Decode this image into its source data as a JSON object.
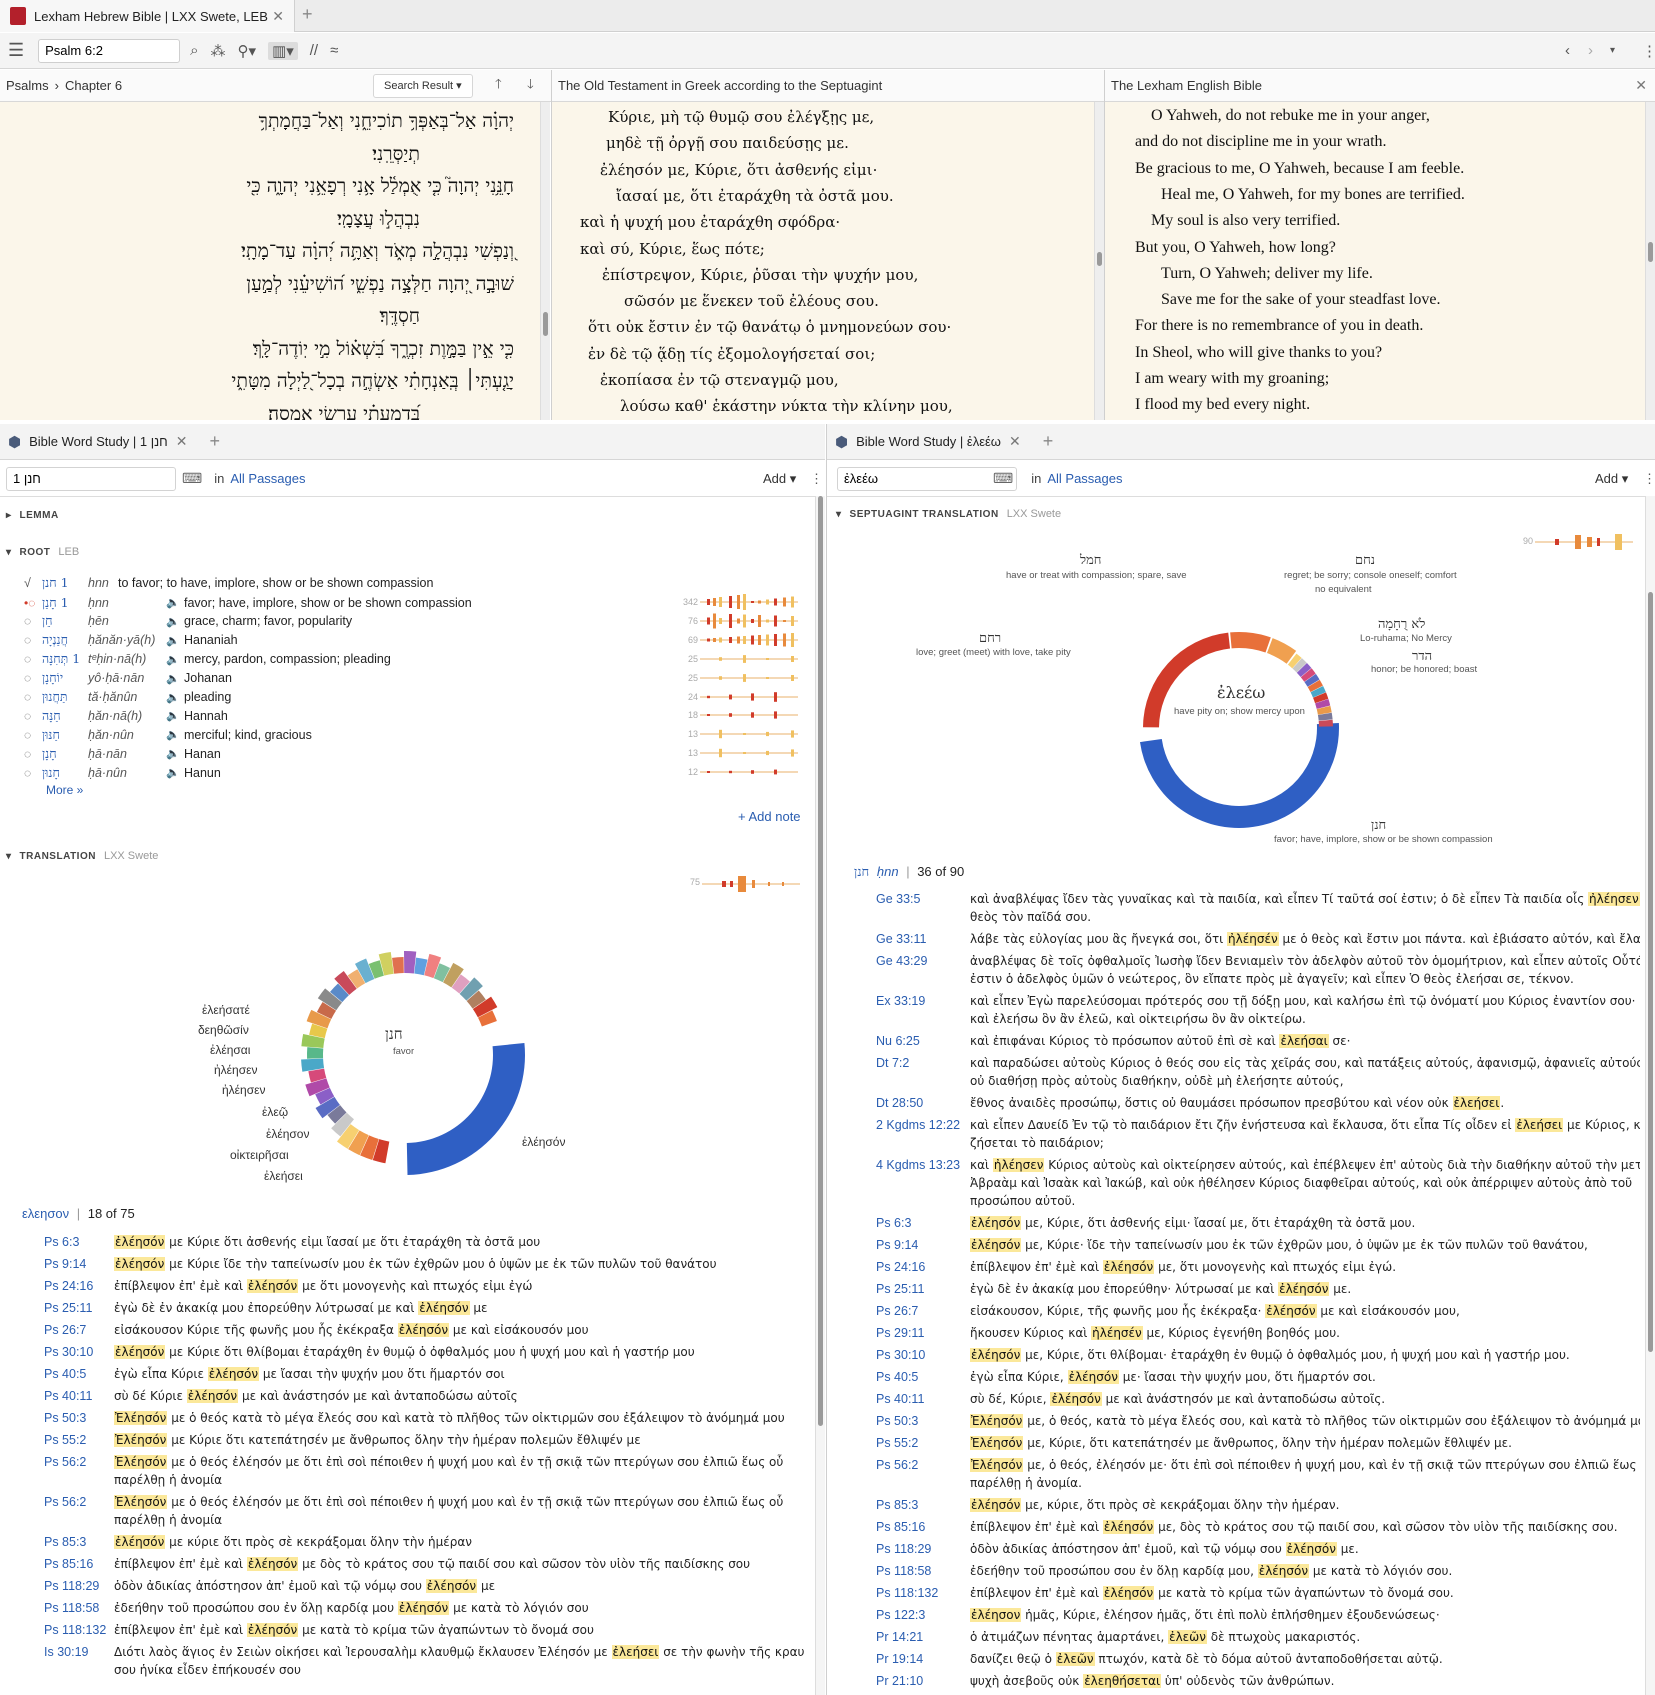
{
  "window": {
    "tab_title": "Lexham Hebrew Bible | LXX Swete, LEB"
  },
  "toolbar": {
    "reference": "Psalm 6:2"
  },
  "pane1": {
    "crumb_book": "Psalms",
    "crumb_chapter": "Chapter 6",
    "search_result": "Search Result",
    "lines": [
      "יְהוָ֗ה אַל־בְּאַפְּךָ֥ תוֹכִיחֵ֑נִי וְאַל־בַּחֲמָתְךָ֥",
      "תְיַסְּרֵֽנִי׃",
      "חָנֵּ֥נִי יְהוָה֮ כִּ֤י אֻמְלַ֫ל אָ֥נִי רְפָאֵ֥נִי יְהוָ֑ה כִּ֖י",
      "נִבְהֲל֣וּ עֲצָמָֽי׃",
      "וְ֭נַפְשִׁי נִבְהֲלָ֣ה מְאֹ֑ד וְאַתָּ֥ה יְ֝הוָ֗ה עַד־מָתָֽי׃",
      "שׁוּבָ֣ה יְ֭הוָה חַלְּצָ֣ה נַפְשִׁ֑י ה֝וֹשִׁיעֵ֗נִי לְמַ֣עַן",
      "חַסְדֶּֽךָ׃",
      "כִּ֤י אֵ֣ין בַּמָּ֣וֶת זִכְרֶ֑ךָ בִּ֝שְׁא֗וֹל מִ֣י יֽוֹדֶה־לָּֽךְ׃",
      "יָגַ֤עְתִּי׀ בְּֽאַנְחָתִ֗י אַשְׂחֶ֣ה בְכָל־לַ֭יְלָה מִטָּתִ֑י",
      "בְּ֝דִמְעָתִ֗י עַרְשִׂ֥י אַמְסֶֽה׃"
    ]
  },
  "pane2": {
    "title": "The Old Testament in Greek according to the Septuagint",
    "lines": [
      "Κύριε, μὴ τῷ θυμῷ σου ἐλέγξῃς με,",
      "μηδὲ τῇ ὀργῇ σου παιδεύσῃς με.",
      "ἐλέησόν με, Κύριε, ὅτι ἀσθενής εἰμι·",
      "ἴασαί με, ὅτι ἐταράχθη τὰ ὀστᾶ μου.",
      "καὶ ἡ ψυχή μου ἐταράχθη σφόδρα·",
      "καὶ σύ, Κύριε, ἕως πότε;",
      "ἐπίστρεψον, Κύριε, ῥῦσαι τὴν ψυχήν μου,",
      "σῶσόν με ἕνεκεν τοῦ ἐλέους σου.",
      "ὅτι οὐκ ἔστιν ἐν τῷ θανάτῳ ὁ μνημονεύων σου·",
      "ἐν δὲ τῷ ᾅδῃ τίς ἐξομολογήσεταί σοι;",
      "ἐκοπίασα ἐν τῷ στεναγμῷ μου,",
      "λούσω καθ' ἑκάστην νύκτα τὴν κλίνην μου,"
    ]
  },
  "pane3": {
    "title": "The Lexham English Bible",
    "lines": [
      "O Yahweh, do not rebuke me in your anger,",
      "and do not discipline me in your wrath.",
      "Be gracious to me, O Yahweh, because I am feeble.",
      "Heal me, O Yahweh, for my bones are terrified.",
      "My soul is also very terrified.",
      "But you, O Yahweh, how long?",
      "Turn, O Yahweh; deliver my life.",
      "Save me for the sake of your steadfast love.",
      "For there is no remembrance of you in death.",
      "In Sheol, who will give thanks to you?",
      "I am weary with my groaning;",
      "I flood my bed every night."
    ]
  },
  "ws1": {
    "tab": "Bible Word Study | 1 חנן",
    "query": "1 חנן",
    "in_label": "in",
    "scope": "All Passages",
    "add": "Add",
    "lemma_head": "LEMMA",
    "root_head": "ROOT",
    "root_sub": "LEB",
    "root_main": {
      "heb": "1 חנן",
      "tr": "hnn",
      "gloss": "to favor; to have, implore, show or be shown compassion"
    },
    "root_rows": [
      {
        "heb": "1 חָנַן",
        "tr": "ḥnn",
        "gloss": "favor; have, implore, show or be shown compassion",
        "count": "342"
      },
      {
        "heb": "חֵן",
        "tr": "ḥēn",
        "gloss": "grace, charm; favor, popularity",
        "count": "76"
      },
      {
        "heb": "חֲנַנְיָה",
        "tr": "ḥănăn·yā(h)",
        "gloss": "Hananiah",
        "count": "69"
      },
      {
        "heb": "1 תְּחִנָּה",
        "tr": "tᵉḥin·nā(h)",
        "gloss": "mercy, pardon, compassion; pleading",
        "count": "25"
      },
      {
        "heb": "יוֹחָנָן",
        "tr": "yô·ḥā·nān",
        "gloss": "Johanan",
        "count": "25"
      },
      {
        "heb": "תַּחֲנוּן",
        "tr": "tă·ḥănûn",
        "gloss": "pleading",
        "count": "24"
      },
      {
        "heb": "חַנָּה",
        "tr": "ḥăn·nā(h)",
        "gloss": "Hannah",
        "count": "18"
      },
      {
        "heb": "חַנּוּן",
        "tr": "ḥăn·nûn",
        "gloss": "merciful; kind, gracious",
        "count": "13"
      },
      {
        "heb": "חָנָן",
        "tr": "ḥā·nān",
        "gloss": "Hanan",
        "count": "13"
      },
      {
        "heb": "חָנוּן",
        "tr": "ḥā·nûn",
        "gloss": "Hanun",
        "count": "12"
      }
    ],
    "more": "More »",
    "add_note": "+ Add note",
    "trans_head": "TRANSLATION",
    "trans_sub": "LXX Swete",
    "trans_count": "75",
    "donut_center": "חנן",
    "donut_center_sub": "favor",
    "donut_labels": [
      "ἐλεήσατέ",
      "δεηθῶσίν",
      "ἐλέησαι",
      "ἠλέησεν",
      "ἠλέησεν",
      "ἐλεῷ",
      "ἐλέησον",
      "οἰκτειρῆσαι",
      "ἐλεήσει",
      "ἐλέησόν"
    ],
    "filter_word": "ελεησον",
    "filter_count": "18 of 75",
    "verses": [
      {
        "ref": "Ps 6:3",
        "pre": "",
        "hl": "ἐλέησόν",
        "post": " με Κύριε ὅτι ἀσθενής εἰμι ἴασαί με ὅτι ἐταράχθη τὰ ὀστᾶ μου"
      },
      {
        "ref": "Ps 9:14",
        "pre": "",
        "hl": "ἐλέησόν",
        "post": " με Κύριε ἴδε τὴν ταπείνωσίν μου ἐκ τῶν ἐχθρῶν μου ὁ ὑψῶν με ἐκ τῶν πυλῶν τοῦ θανάτου"
      },
      {
        "ref": "Ps 24:16",
        "pre": "ἐπίβλεψον ἐπ' ἐμὲ καὶ ",
        "hl": "ἐλέησόν",
        "post": " με ὅτι μονογενὴς καὶ πτωχός εἰμι ἐγώ"
      },
      {
        "ref": "Ps 25:11",
        "pre": "ἐγὼ δὲ ἐν ἀκακίᾳ μου ἐπορεύθην λύτρωσαί με καὶ ",
        "hl": "ἐλέησόν",
        "post": " με"
      },
      {
        "ref": "Ps 26:7",
        "pre": "εἰσάκουσον Κύριε τῆς φωνῆς μου ἧς ἐκέκραξα ",
        "hl": "ἐλέησόν",
        "post": " με καὶ εἰσάκουσόν μου"
      },
      {
        "ref": "Ps 30:10",
        "pre": "",
        "hl": "ἐλέησόν",
        "post": " με Κύριε ὅτι θλίβομαι ἐταράχθη ἐν θυμῷ ὁ ὀφθαλμός μου ἡ ψυχή μου καὶ ἡ γαστήρ μου"
      },
      {
        "ref": "Ps 40:5",
        "pre": "ἐγὼ εἶπα Κύριε ",
        "hl": "ἐλέησόν",
        "post": " με ἴασαι τὴν ψυχήν μου ὅτι ἥμαρτόν σοι"
      },
      {
        "ref": "Ps 40:11",
        "pre": "σὺ δέ Κύριε ",
        "hl": "ἐλέησόν",
        "post": " με καὶ ἀνάστησόν με καὶ ἀνταποδώσω αὐτοῖς"
      },
      {
        "ref": "Ps 50:3",
        "pre": "",
        "hl": "Ἐλέησόν",
        "post": " με ὁ θεός κατὰ τὸ μέγα ἔλεός σου καὶ κατὰ τὸ πλῆθος τῶν οἰκτιρμῶν σου ἐξάλειψον τὸ ἀνόμημά μου"
      },
      {
        "ref": "Ps 55:2",
        "pre": "",
        "hl": "Ἐλέησόν",
        "post": " με Κύριε ὅτι κατεπάτησέν με ἄνθρωπος ὅλην τὴν ἡμέραν πολεμῶν ἔθλιψέν με"
      },
      {
        "ref": "Ps 56:2",
        "pre": "",
        "hl": "Ἐλέησόν",
        "post": " με ὁ θεός ἐλέησόν με ὅτι ἐπὶ σοὶ πέποιθεν ἡ ψυχή μου καὶ ἐν τῇ σκιᾷ τῶν πτερύγων σου ἐλπιῶ ἕως οὗ",
        "line2": "παρέλθῃ ἡ ἀνομία"
      },
      {
        "ref": "Ps 56:2",
        "pre": "",
        "hl": "Ἐλέησόν",
        "post": " με ὁ θεός ἐλέησόν με ὅτι ἐπὶ σοὶ πέποιθεν ἡ ψυχή μου καὶ ἐν τῇ σκιᾷ τῶν πτερύγων σου ἐλπιῶ ἕως οὗ",
        "line2": "παρέλθῃ ἡ ἀνομία"
      },
      {
        "ref": "Ps 85:3",
        "pre": "",
        "hl": "ἐλέησόν",
        "post": " με κύριε ὅτι πρὸς σὲ κεκράξομαι ὅλην τὴν ἡμέραν"
      },
      {
        "ref": "Ps 85:16",
        "pre": "ἐπίβλεψον ἐπ' ἐμὲ καὶ ",
        "hl": "ἐλέησόν",
        "post": " με δὸς τὸ κράτος σου τῷ παιδί σου καὶ σῶσον τὸν υἱὸν τῆς παιδίσκης σου"
      },
      {
        "ref": "Ps 118:29",
        "pre": "ὁδὸν ἀδικίας ἀπόστησον ἀπ' ἐμοῦ καὶ τῷ νόμῳ σου ",
        "hl": "ἐλέησόν",
        "post": " με"
      },
      {
        "ref": "Ps 118:58",
        "pre": "ἐδεήθην τοῦ προσώπου σου ἐν ὅλῃ καρδίᾳ μου ",
        "hl": "ἐλέησόν",
        "post": " με κατὰ τὸ λόγιόν σου"
      },
      {
        "ref": "Ps 118:132",
        "pre": "ἐπίβλεψον ἐπ' ἐμὲ καὶ ",
        "hl": "ἐλέησόν",
        "post": " με κατὰ τὸ κρίμα τῶν ἀγαπώντων τὸ ὄνομά σου"
      },
      {
        "ref": "Is 30:19",
        "pre": "Διότι λαὸς ἅγιος ἐν Σειὼν οἰκήσει καὶ Ἰερουσαλὴμ κλαυθμῷ ἔκλαυσεν Ἐλέησόν με ",
        "hl": "ἐλεήσει",
        "post": " σε τὴν φωνὴν τῆς κραυγῆς",
        "line2": "σου ἡνίκα εἶδεν ἐπήκουσέν σου"
      }
    ]
  },
  "ws2": {
    "tab": "Bible Word Study | ἐλεέω",
    "query": "ἐλεέω",
    "in_label": "in",
    "scope": "All Passages",
    "add": "Add",
    "sec_head": "SEPTUAGINT TRANSLATION",
    "sec_sub": "LXX Swete",
    "sec_count": "90",
    "donut_center": "ἐλεέω",
    "donut_center_sub": "have pity on; show mercy upon",
    "labels": [
      {
        "word": "חמל",
        "sub": "have or treat with compassion; spare, save"
      },
      {
        "word": "נחם",
        "sub": "regret; be sorry; console oneself; comfort"
      },
      {
        "word": "",
        "sub": "no equivalent"
      },
      {
        "word": "רחם",
        "sub": "love; greet (meet) with love, take pity"
      },
      {
        "word": "לֹא רֻחָמָה",
        "sub": "Lo-ruhama; No Mercy"
      },
      {
        "word": "הדר",
        "sub": "honor; be honored; boast"
      },
      {
        "word": "חנן",
        "sub": "favor; have, implore, show or be shown compassion"
      }
    ],
    "filter_word": "חנן",
    "filter_tr": "ḥnn",
    "filter_count": "36 of 90",
    "verses": [
      {
        "ref": "Ge 33:5",
        "pre": "καὶ ἀναβλέψας ἴδεν τὰς γυναῖκας καὶ τὰ παιδία, καὶ εἶπεν Τί ταῦτά σοί ἐστιν; ὁ δὲ εἶπεν Τὰ παιδία οἷς ",
        "hl": "ἠλέησεν",
        "post": " ὁ",
        "line2": "θεὸς τὸν παῖδά σου."
      },
      {
        "ref": "Ge 33:11",
        "pre": "λάβε τὰς εὐλογίας μου ἃς ἤνεγκά σοι, ὅτι ",
        "hl": "ἠλέησέν",
        "post": " με ὁ θεὸς καὶ ἔστιν μοι πάντα. καὶ ἐβιάσατο αὐτόν, καὶ ἔλαβεν."
      },
      {
        "ref": "Ge 43:29",
        "pre": "ἀναβλέψας δὲ τοῖς ὀφθαλμοῖς Ἰωσὴφ ἴδεν Βενιαμεὶν τὸν ἀδελφὸν αὐτοῦ τὸν ὁμομήτριον, καὶ εἶπεν αὐτοῖς Οὗτός",
        "hl": "",
        "post": "",
        "line2": "ἐστιν ὁ ἀδελφὸς ὑμῶν ὁ νεώτερος, ὃν εἴπατε πρὸς μὲ ἀγαγεῖν; καὶ εἶπεν Ὁ θεὸς ἐλεήσαι σε, τέκνον."
      },
      {
        "ref": "Ex 33:19",
        "pre": "καὶ εἶπεν Ἐγὼ παρελεύσομαι πρότερός σου τῇ δόξῃ μου, καὶ καλήσω ἐπὶ τῷ ὀνόματί μου Κύριος ἐναντίον σου·",
        "hl": "",
        "post": "",
        "line2": "καὶ ἐλεήσω ὃν ἂν ἐλεῶ, καὶ οἰκτειρήσω ὃν ἂν οἰκτείρω."
      },
      {
        "ref": "Nu 6:25",
        "pre": "καὶ ἐπιφάναι Κύριος τὸ πρόσωπον αὐτοῦ ἐπὶ σὲ καὶ ",
        "hl": "ἐλεήσαι",
        "post": " σε·"
      },
      {
        "ref": "Dt 7:2",
        "pre": "καὶ παραδώσει αὐτοὺς Κύριος ὁ θεός σου εἰς τὰς χεῖράς σου, καὶ πατάξεις αὐτούς, ἀφανισμῷ, ἀφανιεῖς αὐτούς·",
        "hl": "",
        "post": "",
        "line2": "οὐ διαθήσῃ πρὸς αὐτοὺς διαθήκην, οὐδὲ μὴ ἐλεήσητε αὐτούς,"
      },
      {
        "ref": "Dt 28:50",
        "pre": "ἔθνος ἀναιδὲς προσώπῳ, ὅστις οὐ θαυμάσει πρόσωπον πρεσβύτου καὶ νέον οὐκ ",
        "hl": "ἐλεήσει",
        "post": "."
      },
      {
        "ref": "2 Kgdms 12:22",
        "pre": "καὶ εἶπεν Δαυείδ Ἐν τῷ τὸ παιδάριον ἔτι ζῆν ἐνήστευσα καὶ ἔκλαυσα, ὅτι εἶπα Τίς οἶδεν εἰ ",
        "hl": "ἐλεήσει",
        "post": " με Κύριος, καὶ",
        "line2": "ζήσεται τὸ παιδάριον;"
      },
      {
        "ref": "4 Kgdms 13:23",
        "pre": "καὶ ",
        "hl": "ἠλέησεν",
        "post": " Κύριος αὐτοὺς καὶ οἰκτείρησεν αὐτούς, καὶ ἐπέβλεψεν ἐπ' αὐτοὺς διὰ τὴν διαθήκην αὐτοῦ τὴν μετὰ",
        "line2": "Ἀβραὰμ καὶ Ἰσαὰκ καὶ Ἰακώβ, καὶ οὐκ ἠθέλησεν Κύριος διαφθεῖραι αὐτούς, καὶ οὐκ ἀπέρριψεν αὐτοὺς ἀπὸ τοῦ",
        "line3": "προσώπου αὐτοῦ."
      },
      {
        "ref": "Ps 6:3",
        "pre": "",
        "hl": "ἐλέησόν",
        "post": " με, Κύριε, ὅτι ἀσθενής εἰμι· ἴασαί με, ὅτι ἐταράχθη τὰ ὀστᾶ μου."
      },
      {
        "ref": "Ps 9:14",
        "pre": "",
        "hl": "ἐλέησόν",
        "post": " με, Κύριε· ἴδε τὴν ταπείνωσίν μου ἐκ τῶν ἐχθρῶν μου, ὁ ὑψῶν με ἐκ τῶν πυλῶν τοῦ θανάτου,"
      },
      {
        "ref": "Ps 24:16",
        "pre": "ἐπίβλεψον ἐπ' ἐμὲ καὶ ",
        "hl": "ἐλέησόν",
        "post": " με, ὅτι μονογενὴς καὶ πτωχός εἰμι ἐγώ."
      },
      {
        "ref": "Ps 25:11",
        "pre": "ἐγὼ δὲ ἐν ἀκακίᾳ μου ἐπορεύθην· λύτρωσαί με καὶ ",
        "hl": "ἐλέησόν",
        "post": " με."
      },
      {
        "ref": "Ps 26:7",
        "pre": "εἰσάκουσον, Κύριε, τῆς φωνῆς μου ἧς ἐκέκραξα· ",
        "hl": "ἐλέησόν",
        "post": " με καὶ εἰσάκουσόν μου,"
      },
      {
        "ref": "Ps 29:11",
        "pre": "ἤκουσεν Κύριος καὶ ",
        "hl": "ἠλέησέν",
        "post": " με, Κύριος ἐγενήθη βοηθός μου."
      },
      {
        "ref": "Ps 30:10",
        "pre": "",
        "hl": "ἐλέησόν",
        "post": " με, Κύριε, ὅτι θλίβομαι· ἐταράχθη ἐν θυμῷ ὁ ὀφθαλμός μου, ἡ ψυχή μου καὶ ἡ γαστήρ μου."
      },
      {
        "ref": "Ps 40:5",
        "pre": "ἐγὼ εἶπα Κύριε, ",
        "hl": "ἐλέησόν",
        "post": " με· ἴασαι τὴν ψυχήν μου, ὅτι ἥμαρτόν σοι."
      },
      {
        "ref": "Ps 40:11",
        "pre": "σὺ δέ, Κύριε, ",
        "hl": "ἐλέησόν",
        "post": " με καὶ ἀνάστησόν με καὶ ἀνταποδώσω αὐτοῖς."
      },
      {
        "ref": "Ps 50:3",
        "pre": "",
        "hl": "Ἐλέησόν",
        "post": " με, ὁ θεός, κατὰ τὸ μέγα ἔλεός σου, καὶ κατὰ τὸ πλῆθος τῶν οἰκτιρμῶν σου ἐξάλειψον τὸ ἀνόμημά μου·"
      },
      {
        "ref": "Ps 55:2",
        "pre": "",
        "hl": "Ἐλέησόν",
        "post": " με, Κύριε, ὅτι κατεπάτησέν με ἄνθρωπος, ὅλην τὴν ἡμέραν πολεμῶν ἔθλιψέν με."
      },
      {
        "ref": "Ps 56:2",
        "pre": "",
        "hl": "Ἐλέησόν",
        "post": " με, ὁ θεός, ἐλέησόν με· ὅτι ἐπὶ σοὶ πέποιθεν ἡ ψυχή μου, καὶ ἐν τῇ σκιᾷ τῶν πτερύγων σου ἐλπιῶ ἕως οὗ",
        "line2": "παρέλθῃ ἡ ἀνομία."
      },
      {
        "ref": "Ps 85:3",
        "pre": "",
        "hl": "ἐλέησόν",
        "post": " με, κύριε, ὅτι πρὸς σὲ κεκράξομαι ὅλην τὴν ἡμέραν."
      },
      {
        "ref": "Ps 85:16",
        "pre": "ἐπίβλεψον ἐπ' ἐμὲ καὶ ",
        "hl": "ἐλέησόν",
        "post": " με, δὸς τὸ κράτος σου τῷ παιδί σου, καὶ σῶσον τὸν υἱὸν τῆς παιδίσκης σου."
      },
      {
        "ref": "Ps 118:29",
        "pre": "ὁδὸν ἀδικίας ἀπόστησον ἀπ' ἐμοῦ, καὶ τῷ νόμῳ σου ",
        "hl": "ἐλέησόν",
        "post": " με."
      },
      {
        "ref": "Ps 118:58",
        "pre": "ἐδεήθην τοῦ προσώπου σου ἐν ὅλῃ καρδίᾳ μου, ",
        "hl": "ἐλέησόν",
        "post": " με κατὰ τὸ λόγιόν σου."
      },
      {
        "ref": "Ps 118:132",
        "pre": "ἐπίβλεψον ἐπ' ἐμὲ καὶ ",
        "hl": "ἐλέησόν",
        "post": " με κατὰ τὸ κρίμα τῶν ἀγαπώντων τὸ ὄνομά σου."
      },
      {
        "ref": "Ps 122:3",
        "pre": "",
        "hl": "ἐλέησον",
        "post": " ἡμᾶς, Κύριε, ἐλέησον ἡμᾶς, ὅτι ἐπὶ πολὺ ἐπλήσθημεν ἐξουδενώσεως·"
      },
      {
        "ref": "Pr 14:21",
        "pre": "ὁ ἀτιμάζων πένητας ἁμαρτάνει, ",
        "hl": "ἐλεῶν",
        "post": " δὲ πτωχοὺς μακαριστός."
      },
      {
        "ref": "Pr 19:14",
        "pre": "δανίζει θεῷ ὁ ",
        "hl": "ἐλεῶν",
        "post": " πτωχόν, κατὰ δὲ τὸ δόμα αὐτοῦ ἀνταποδοθήσεται αὐτῷ."
      },
      {
        "ref": "Pr 21:10",
        "pre": "ψυχὴ ἀσεβοῦς οὐκ ",
        "hl": "ἐλεηθήσεται",
        "post": " ὑπ' οὐδενὸς τῶν ἀνθρώπων."
      }
    ]
  },
  "colors": {
    "who": "#6a3fd6",
    "how": "#d9400e",
    "link": "#2a5db0",
    "highlight": "#fbe89a",
    "accent_blue": "#2f5fc4"
  }
}
